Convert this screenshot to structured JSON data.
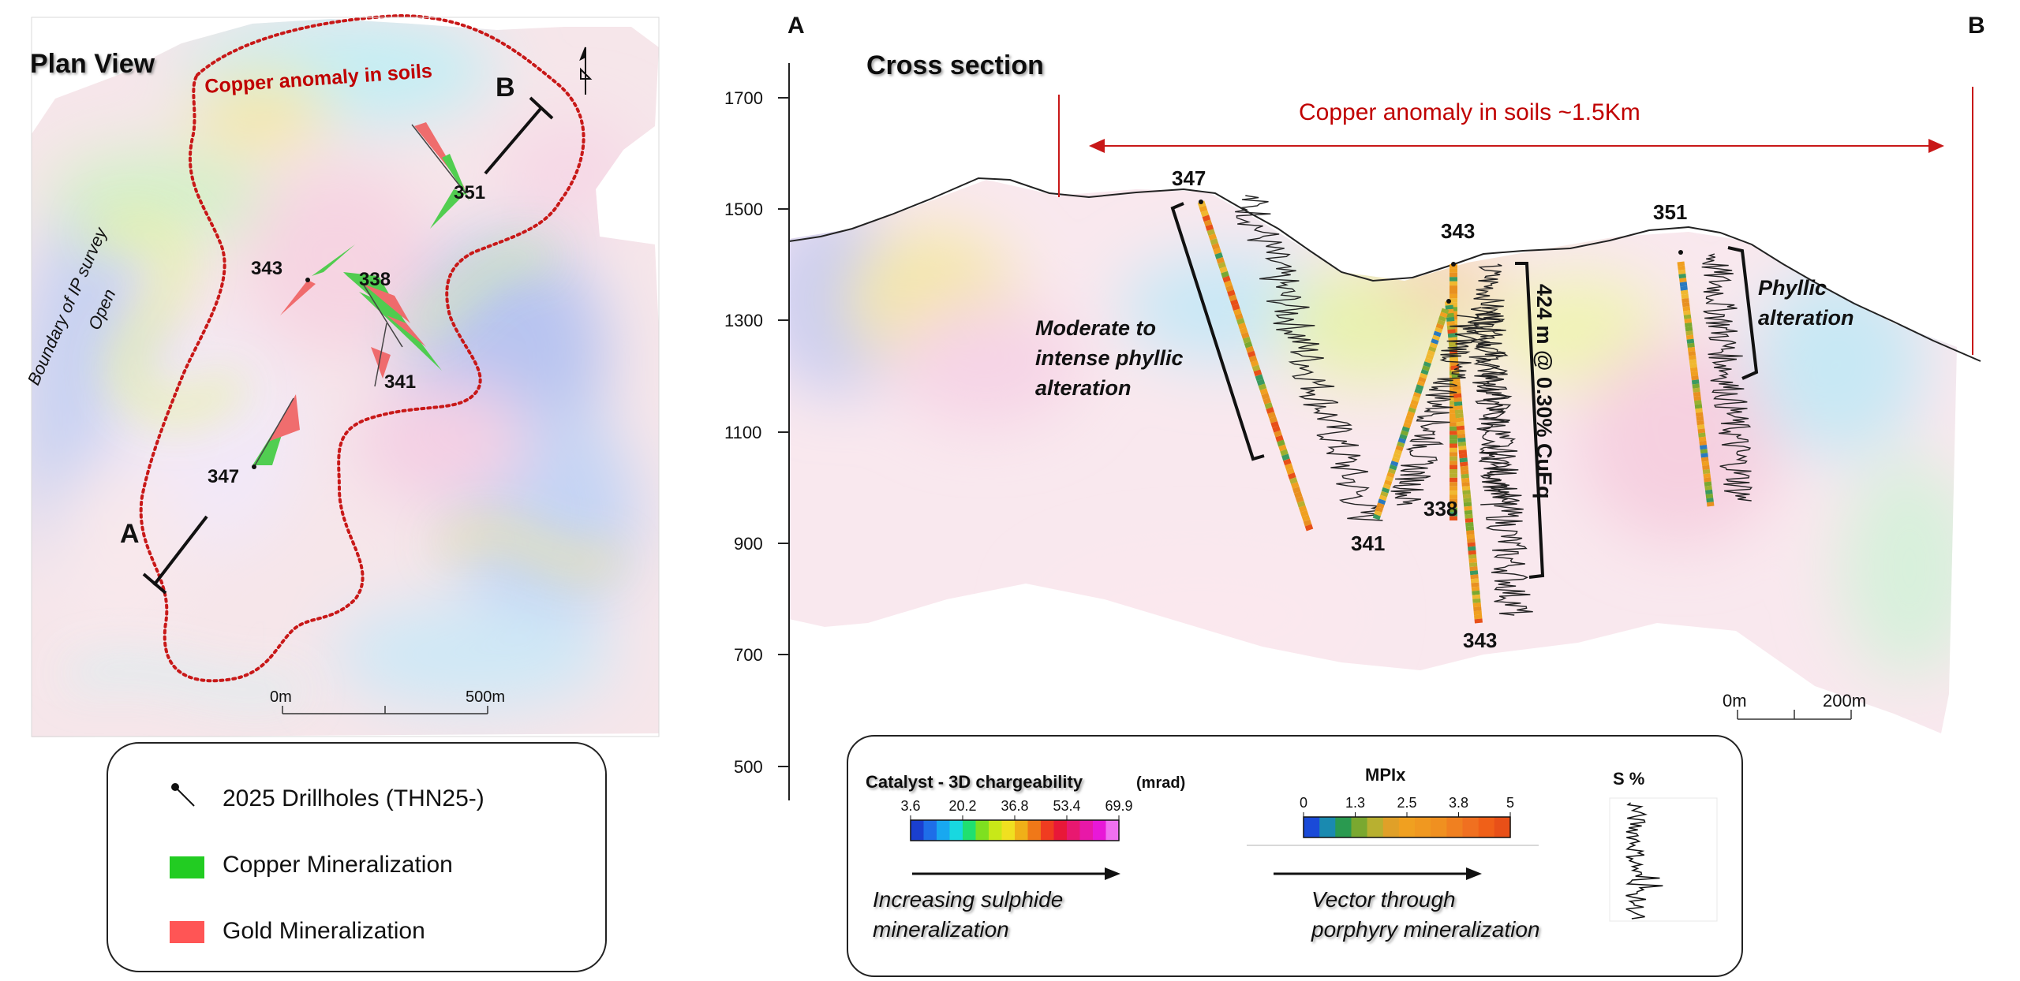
{
  "plan": {
    "title": "Plan View",
    "copper_anomaly_label": "Copper anomaly in soils",
    "boundary_label_1": "Boundary of IP survey",
    "boundary_label_2": "Open",
    "point_a": "A",
    "point_b": "B",
    "holes": [
      "351",
      "343",
      "338",
      "341",
      "347"
    ],
    "scale_left": "0m",
    "scale_right": "500m",
    "north_symbol": "N"
  },
  "legend": {
    "items": [
      {
        "label": "2025 Drillholes (THN25-)",
        "symbol": "drillhole-icon"
      },
      {
        "label": "Copper Mineralization",
        "color": "#22cc22"
      },
      {
        "label": "Gold Mineralization",
        "color": "#ff5555"
      }
    ]
  },
  "section": {
    "title": "Cross section",
    "end_a": "A",
    "end_b": "B",
    "y_ticks": [
      "1700",
      "1500",
      "1300",
      "1100",
      "900",
      "700",
      "500"
    ],
    "anomaly_label": "Copper anomaly in soils  ~1.5Km",
    "phyllic_left_1": "Moderate to",
    "phyllic_left_2": "intense phyllic",
    "phyllic_left_3": "alteration",
    "phyllic_right_1": "Phyllic",
    "phyllic_right_2": "alteration",
    "intercept": "424 m @ 0.30% CuEq",
    "hole_labels": {
      "h347": "347",
      "h343top": "343",
      "h351": "351",
      "h341": "341",
      "h338": "338",
      "h343bot": "343"
    },
    "scale_left": "0m",
    "scale_right": "200m"
  },
  "key": {
    "chargeability_title": "Catalyst - 3D chargeability",
    "chargeability_unit": "(mrad)",
    "chargeability_ticks": [
      "3.6",
      "20.2",
      "36.8",
      "53.4",
      "69.9"
    ],
    "chargeability_colors": [
      "#1a3fd0",
      "#1e6ee8",
      "#18a8f0",
      "#18d8e0",
      "#20e070",
      "#7ee020",
      "#c8e818",
      "#f0e020",
      "#f0b018",
      "#f07818",
      "#f03c20",
      "#e81838",
      "#e81870",
      "#e818a8",
      "#e818d8",
      "#f070f0"
    ],
    "sulphide_1": "Increasing sulphide",
    "sulphide_2": "mineralization",
    "mpix_title": "MPIx",
    "mpix_ticks": [
      "0",
      "1.3",
      "2.5",
      "3.8",
      "5"
    ],
    "mpix_colors": [
      "#1a4ad8",
      "#1a8ab0",
      "#2a9a50",
      "#7aa830",
      "#b8b030",
      "#e0a028",
      "#f0a020",
      "#f09820",
      "#f09020",
      "#f08020",
      "#f07020",
      "#f06018",
      "#e85018"
    ],
    "porphyry_1": "Vector through",
    "porphyry_2": "porphyry mineralization",
    "s_title": "S %"
  },
  "colors": {
    "anomaly_red": "#c00000",
    "anomaly_line": "#c81818"
  }
}
